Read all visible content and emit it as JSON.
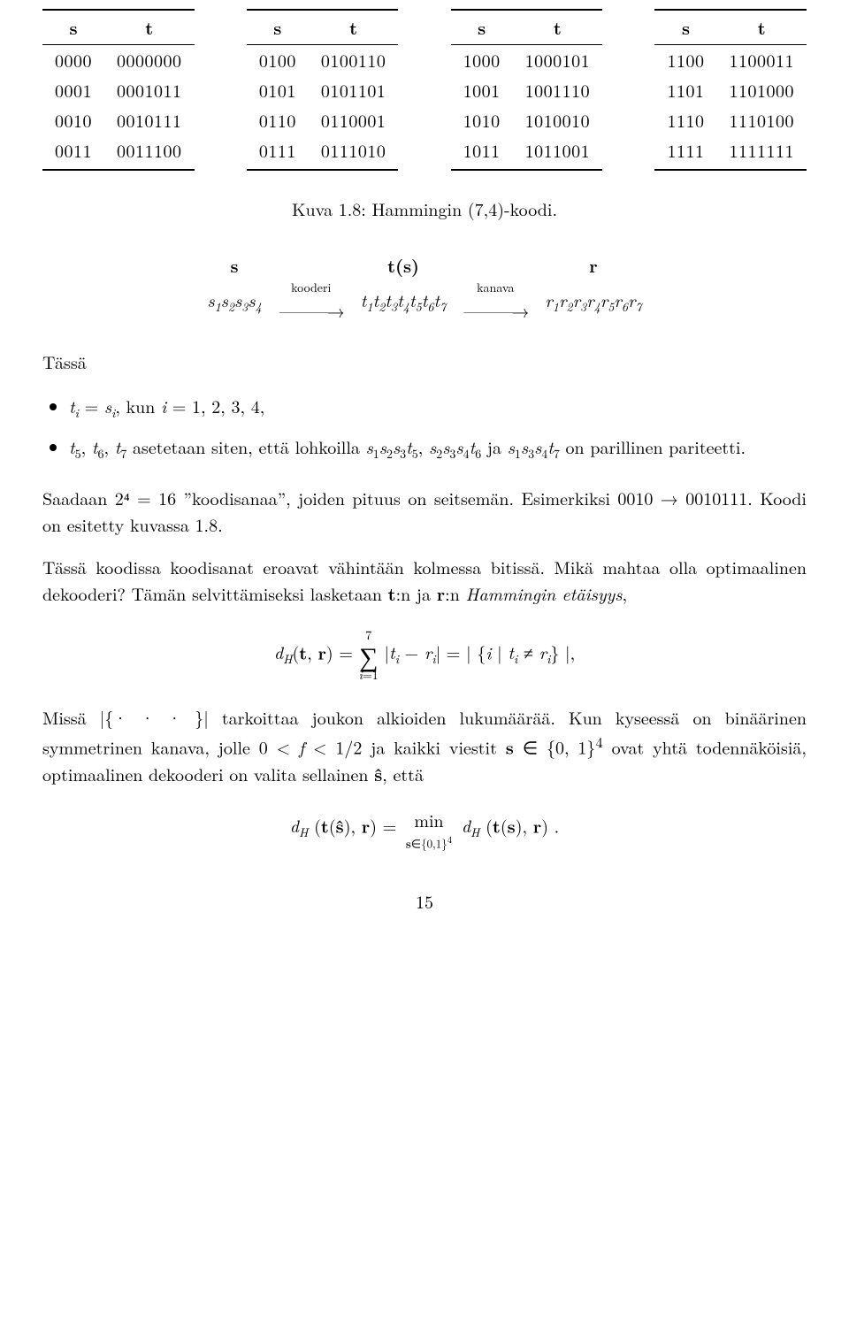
{
  "tables": {
    "headers": [
      "s",
      "t"
    ],
    "blocks": [
      [
        [
          "0000",
          "0000000"
        ],
        [
          "0001",
          "0001011"
        ],
        [
          "0010",
          "0010111"
        ],
        [
          "0011",
          "0011100"
        ]
      ],
      [
        [
          "0100",
          "0100110"
        ],
        [
          "0101",
          "0101101"
        ],
        [
          "0110",
          "0110001"
        ],
        [
          "0111",
          "0111010"
        ]
      ],
      [
        [
          "1000",
          "1000101"
        ],
        [
          "1001",
          "1001110"
        ],
        [
          "1010",
          "1010010"
        ],
        [
          "1011",
          "1011001"
        ]
      ],
      [
        [
          "1100",
          "1100011"
        ],
        [
          "1101",
          "1101000"
        ],
        [
          "1110",
          "1110100"
        ],
        [
          "1111",
          "1111111"
        ]
      ]
    ]
  },
  "caption": "Kuva 1.8: Hammingin (7,4)-koodi.",
  "diagram": {
    "top": [
      "s",
      "t(s)",
      "r"
    ],
    "bottom_left": "s₁s₂s₃s₄",
    "arrow1_label": "kooderi",
    "bottom_mid": "t₁t₂t₃t₄t₅t₆t₇",
    "arrow2_label": "kanava",
    "bottom_right": "r₁r₂r₃r₄r₅r₆r₇"
  },
  "tassa_label": "Tässä",
  "bullets": [
    "tᵢ = sᵢ, kun i = 1, 2, 3, 4,",
    "t₅, t₆, t₇ asetetaan siten, että lohkoilla s₁s₂s₃t₅, s₂s₃s₄t₆ ja s₁s₃s₄t₇ on parillinen pariteetti."
  ],
  "para1": "Saadaan 2⁴ = 16 ”koodisanaa”, joiden pituus on seitsemän. Esimerkiksi 0010 → 0010111. Koodi on esitetty kuvassa 1.8.",
  "para2_a": "Tässä koodissa koodisanat eroavat vähintään kolmessa bitissä. Mikä mahtaa olla optimaalinen dekooderi? Tämän selvittämiseksi lasketaan ",
  "para2_b": ":n ja ",
  "para2_c": ":n ",
  "hamming_term": "Hammingin etäisyys",
  "eq1": "d_H(𝐭, 𝐫) = Σᵢ₌₁⁷ |tᵢ − rᵢ| = | {i | tᵢ ≠ rᵢ} |,",
  "para3_a": "Missä |{· · ·}| tarkoittaa joukon alkioiden lukumäärää. Kun kyseessä on binäärinen symmetrinen kanava, jolle 0 < f < 1/2 ja kaikki viestit 𝐬 ∈ {0, 1}⁴ ovat yhtä todennäköisiä, optimaalinen dekooderi on valita sellainen 𝐬̂, että",
  "eq2_left": "d_H (𝐭(𝐬̂), 𝐫) = ",
  "eq2_min": "min",
  "eq2_sub": "𝐬∈{0,1}⁴",
  "eq2_right": " d_H (𝐭(𝐬), 𝐫) .",
  "pagenum": "15",
  "bold_t": "t",
  "bold_r": "r"
}
